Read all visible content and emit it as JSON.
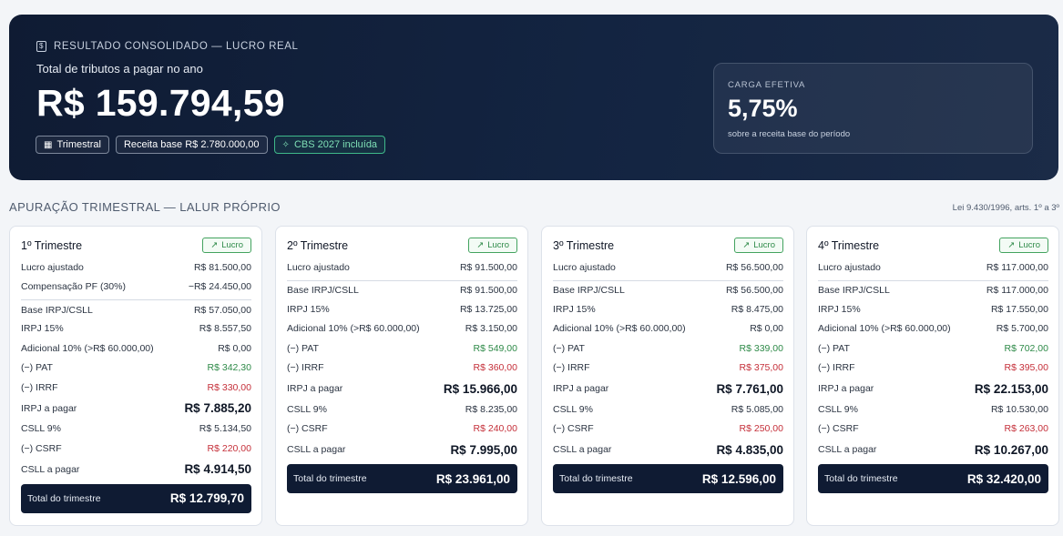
{
  "hero": {
    "eyebrow": "RESULTADO CONSOLIDADO — LUCRO REAL",
    "subtitle": "Total de tributos a pagar no ano",
    "total": "R$ 159.794,59",
    "chips": [
      {
        "label": "Trimestral",
        "icon": "calendar-icon"
      },
      {
        "label": "Receita base R$ 2.780.000,00",
        "icon": ""
      },
      {
        "label": "CBS 2027 incluída",
        "icon": "sparkle-icon"
      }
    ],
    "carga": {
      "label": "CARGA EFETIVA",
      "value": "5,75%",
      "note": "sobre a receita base do período"
    }
  },
  "section": {
    "title": "APURAÇÃO TRIMESTRAL — LALUR PRÓPRIO",
    "reference": "Lei 9.430/1996, arts. 1º a 3º"
  },
  "colors": {
    "navy": "#0f1b33",
    "positive": "#2e8a48",
    "negative": "#c5303a"
  },
  "quarters": [
    {
      "title": "1º Trimestre",
      "badge": "Lucro",
      "rows": [
        {
          "label": "Lucro ajustado",
          "value": "R$ 81.500,00",
          "style": ""
        },
        {
          "label": "Compensação PF (30%)",
          "value": "−R$ 24.450,00",
          "style": ""
        },
        {
          "label": "Base IRPJ/CSLL",
          "value": "R$ 57.050,00",
          "style": "sep"
        },
        {
          "label": "IRPJ 15%",
          "value": "R$ 8.557,50",
          "style": ""
        },
        {
          "label": "Adicional 10% (>R$ 60.000,00)",
          "value": "R$ 0,00",
          "style": ""
        },
        {
          "label": "(−) PAT",
          "value": "R$ 342,30",
          "style": "green"
        },
        {
          "label": "(−) IRRF",
          "value": "R$ 330,00",
          "style": "red"
        },
        {
          "label": "IRPJ a pagar",
          "value": "R$ 7.885,20",
          "style": "big"
        },
        {
          "label": "CSLL 9%",
          "value": "R$ 5.134,50",
          "style": ""
        },
        {
          "label": "(−) CSRF",
          "value": "R$ 220,00",
          "style": "red"
        },
        {
          "label": "CSLL a pagar",
          "value": "R$ 4.914,50",
          "style": "big"
        }
      ],
      "total_label": "Total do trimestre",
      "total_value": "R$ 12.799,70"
    },
    {
      "title": "2º Trimestre",
      "badge": "Lucro",
      "rows": [
        {
          "label": "Lucro ajustado",
          "value": "R$ 91.500,00",
          "style": ""
        },
        {
          "label": "Base IRPJ/CSLL",
          "value": "R$ 91.500,00",
          "style": "sep"
        },
        {
          "label": "IRPJ 15%",
          "value": "R$ 13.725,00",
          "style": ""
        },
        {
          "label": "Adicional 10% (>R$ 60.000,00)",
          "value": "R$ 3.150,00",
          "style": ""
        },
        {
          "label": "(−) PAT",
          "value": "R$ 549,00",
          "style": "green"
        },
        {
          "label": "(−) IRRF",
          "value": "R$ 360,00",
          "style": "red"
        },
        {
          "label": "IRPJ a pagar",
          "value": "R$ 15.966,00",
          "style": "big"
        },
        {
          "label": "CSLL 9%",
          "value": "R$ 8.235,00",
          "style": ""
        },
        {
          "label": "(−) CSRF",
          "value": "R$ 240,00",
          "style": "red"
        },
        {
          "label": "CSLL a pagar",
          "value": "R$ 7.995,00",
          "style": "big"
        }
      ],
      "total_label": "Total do trimestre",
      "total_value": "R$ 23.961,00"
    },
    {
      "title": "3º Trimestre",
      "badge": "Lucro",
      "rows": [
        {
          "label": "Lucro ajustado",
          "value": "R$ 56.500,00",
          "style": ""
        },
        {
          "label": "Base IRPJ/CSLL",
          "value": "R$ 56.500,00",
          "style": "sep"
        },
        {
          "label": "IRPJ 15%",
          "value": "R$ 8.475,00",
          "style": ""
        },
        {
          "label": "Adicional 10% (>R$ 60.000,00)",
          "value": "R$ 0,00",
          "style": ""
        },
        {
          "label": "(−) PAT",
          "value": "R$ 339,00",
          "style": "green"
        },
        {
          "label": "(−) IRRF",
          "value": "R$ 375,00",
          "style": "red"
        },
        {
          "label": "IRPJ a pagar",
          "value": "R$ 7.761,00",
          "style": "big"
        },
        {
          "label": "CSLL 9%",
          "value": "R$ 5.085,00",
          "style": ""
        },
        {
          "label": "(−) CSRF",
          "value": "R$ 250,00",
          "style": "red"
        },
        {
          "label": "CSLL a pagar",
          "value": "R$ 4.835,00",
          "style": "big"
        }
      ],
      "total_label": "Total do trimestre",
      "total_value": "R$ 12.596,00"
    },
    {
      "title": "4º Trimestre",
      "badge": "Lucro",
      "rows": [
        {
          "label": "Lucro ajustado",
          "value": "R$ 117.000,00",
          "style": ""
        },
        {
          "label": "Base IRPJ/CSLL",
          "value": "R$ 117.000,00",
          "style": "sep"
        },
        {
          "label": "IRPJ 15%",
          "value": "R$ 17.550,00",
          "style": ""
        },
        {
          "label": "Adicional 10% (>R$ 60.000,00)",
          "value": "R$ 5.700,00",
          "style": ""
        },
        {
          "label": "(−) PAT",
          "value": "R$ 702,00",
          "style": "green"
        },
        {
          "label": "(−) IRRF",
          "value": "R$ 395,00",
          "style": "red"
        },
        {
          "label": "IRPJ a pagar",
          "value": "R$ 22.153,00",
          "style": "big"
        },
        {
          "label": "CSLL 9%",
          "value": "R$ 10.530,00",
          "style": ""
        },
        {
          "label": "(−) CSRF",
          "value": "R$ 263,00",
          "style": "red"
        },
        {
          "label": "CSLL a pagar",
          "value": "R$ 10.267,00",
          "style": "big"
        }
      ],
      "total_label": "Total do trimestre",
      "total_value": "R$ 32.420,00"
    }
  ]
}
